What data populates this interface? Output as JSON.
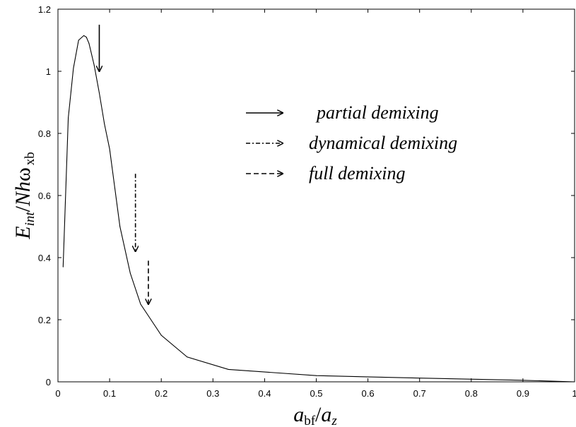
{
  "chart_data": {
    "type": "line",
    "xlim": [
      0,
      1
    ],
    "ylim": [
      0,
      1.2
    ],
    "xticks": [
      "0",
      "0.1",
      "0.2",
      "0.3",
      "0.4",
      "0.5",
      "0.6",
      "0.7",
      "0.8",
      "0.9",
      "1"
    ],
    "yticks": [
      "0",
      "0.2",
      "0.4",
      "0.6",
      "0.8",
      "1",
      "1.2"
    ],
    "xlabel": {
      "main": "a",
      "sub1": "bf",
      "slash": "/",
      "main2": "a",
      "sub2": "z"
    },
    "ylabel": {
      "main": "E",
      "sub1": "int",
      "slash": "/",
      "main2": "Nh",
      "omega": "ω",
      "sub2": "xb"
    },
    "grid": false,
    "legend_position": "top-right",
    "series": [
      {
        "x": [
          0.01,
          0.02,
          0.03,
          0.04,
          0.05,
          0.055,
          0.06,
          0.07,
          0.08,
          0.09,
          0.1,
          0.12,
          0.14,
          0.16,
          0.18,
          0.2,
          0.25,
          0.33,
          0.5,
          0.7,
          0.9,
          1.0
        ],
        "y": [
          0.37,
          0.85,
          1.01,
          1.1,
          1.115,
          1.11,
          1.09,
          1.02,
          0.93,
          0.83,
          0.75,
          0.5,
          0.35,
          0.25,
          0.2,
          0.15,
          0.08,
          0.04,
          0.02,
          0.012,
          0.005,
          0.0
        ]
      }
    ],
    "annotations": [
      {
        "style": "solid",
        "x": 0.08,
        "y_from": 1.15,
        "y_to": 1.0
      },
      {
        "style": "dashdot",
        "x": 0.15,
        "y_from": 0.67,
        "y_to": 0.42
      },
      {
        "style": "dashed",
        "x": 0.175,
        "y_from": 0.39,
        "y_to": 0.25
      }
    ],
    "legend": [
      {
        "style": "solid",
        "label": "partial demixing"
      },
      {
        "style": "dashdot",
        "label": "dynamical demixing"
      },
      {
        "style": "dashed",
        "label": "full demixing"
      }
    ]
  }
}
